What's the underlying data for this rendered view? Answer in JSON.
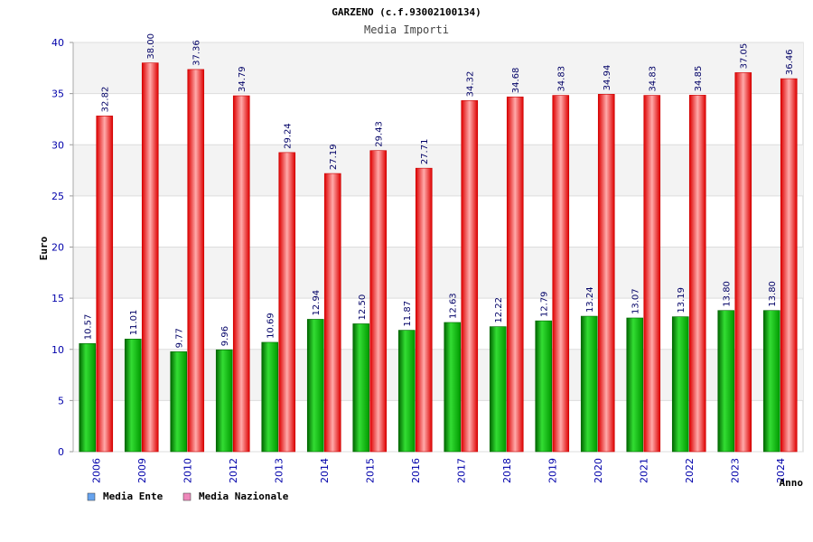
{
  "chart_data": {
    "type": "bar",
    "title": "GARZENO (c.f.93002100134)",
    "subtitle": "Media Importi",
    "ylabel": "Euro",
    "xlabel": "Anno",
    "ylim": [
      0,
      40
    ],
    "yticks": [
      0,
      5,
      10,
      15,
      20,
      25,
      30,
      35,
      40
    ],
    "categories": [
      "2006",
      "2009",
      "2010",
      "2012",
      "2013",
      "2014",
      "2015",
      "2016",
      "2017",
      "2018",
      "2019",
      "2020",
      "2021",
      "2022",
      "2023",
      "2024"
    ],
    "series": [
      {
        "name": "Media Ente",
        "values": [
          10.57,
          11.01,
          9.77,
          9.96,
          10.69,
          12.94,
          12.5,
          11.87,
          12.63,
          12.22,
          12.79,
          13.24,
          13.07,
          13.19,
          13.8,
          13.8
        ],
        "labels": [
          "10.57",
          "11.01",
          "9.77",
          "9.96",
          "10.69",
          "12.94",
          "12.50",
          "11.87",
          "12.63",
          "12.22",
          "12.79",
          "13.24",
          "13.07",
          "13.19",
          "13.80",
          "13.80"
        ]
      },
      {
        "name": "Media Nazionale",
        "values": [
          32.82,
          38.0,
          37.36,
          34.79,
          29.24,
          27.19,
          29.43,
          27.71,
          34.32,
          34.68,
          34.83,
          34.94,
          34.83,
          34.85,
          37.05,
          36.46
        ],
        "labels": [
          "32.82",
          "38.00",
          "37.36",
          "34.79",
          "29.24",
          "27.19",
          "29.43",
          "27.71",
          "34.32",
          "34.68",
          "34.83",
          "34.94",
          "34.83",
          "34.85",
          "37.05",
          "36.46"
        ]
      }
    ],
    "legend": [
      {
        "name": "Media Ente",
        "color": "#66a3ee"
      },
      {
        "name": "Media Nazionale",
        "color": "#ee88bb"
      }
    ],
    "grid": true,
    "legend_position": "bottom-left"
  }
}
